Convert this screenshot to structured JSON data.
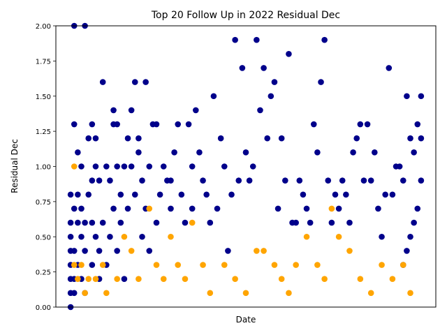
{
  "chart_data": {
    "type": "scatter",
    "title": "Top 20 Follow Up in 2022 Residual Dec",
    "xlabel": "Date",
    "ylabel": "Residual Dec",
    "ylim": [
      0,
      2
    ],
    "yticks": [
      0.0,
      0.25,
      0.5,
      0.75,
      1.0,
      1.25,
      1.5,
      1.75,
      2.0
    ],
    "ytick_labels": [
      "0.00",
      "0.25",
      "0.50",
      "0.75",
      "1.00",
      "1.25",
      "1.50",
      "1.75",
      "2.00"
    ],
    "x_tick_labels_visible": false,
    "grid": false,
    "legend": "none",
    "colors": {
      "primary": "#00008b",
      "highlight": "#ffa500"
    },
    "series": [
      {
        "color": "#00008b",
        "x": [
          0.01,
          0.01,
          0.01,
          0.01,
          0.01,
          0.01,
          0.01,
          0.01,
          0.02,
          0.02,
          0.02,
          0.02,
          0.02,
          0.02,
          0.03,
          0.03,
          0.03,
          0.03,
          0.04,
          0.04,
          0.04,
          0.04,
          0.05,
          0.05,
          0.05,
          0.05,
          0.06,
          0.06,
          0.07,
          0.07,
          0.07,
          0.07,
          0.08,
          0.08,
          0.08,
          0.09,
          0.09,
          0.09,
          0.1,
          0.1,
          0.11,
          0.11,
          0.12,
          0.12,
          0.13,
          0.13,
          0.13,
          0.14,
          0.14,
          0.14,
          0.15,
          0.15,
          0.16,
          0.16,
          0.17,
          0.17,
          0.18,
          0.18,
          0.19,
          0.19,
          0.2,
          0.2,
          0.21,
          0.21,
          0.22,
          0.22,
          0.23,
          0.23,
          0.24,
          0.25,
          0.25,
          0.26,
          0.27,
          0.28,
          0.29,
          0.29,
          0.3,
          0.31,
          0.32,
          0.33,
          0.34,
          0.35,
          0.35,
          0.36,
          0.37,
          0.38,
          0.39,
          0.4,
          0.41,
          0.42,
          0.43,
          0.44,
          0.45,
          0.46,
          0.47,
          0.48,
          0.49,
          0.5,
          0.51,
          0.52,
          0.53,
          0.54,
          0.55,
          0.56,
          0.57,
          0.58,
          0.59,
          0.6,
          0.61,
          0.62,
          0.63,
          0.64,
          0.65,
          0.66,
          0.67,
          0.68,
          0.69,
          0.7,
          0.71,
          0.72,
          0.73,
          0.74,
          0.75,
          0.76,
          0.77,
          0.78,
          0.79,
          0.8,
          0.81,
          0.82,
          0.83,
          0.84,
          0.85,
          0.86,
          0.87,
          0.88,
          0.89,
          0.9,
          0.91,
          0.92,
          0.93,
          0.94,
          0.95,
          0.96,
          0.97,
          0.98,
          0.99,
          0.99,
          0.99,
          0.98,
          0.97,
          0.96,
          0.95,
          0.94
        ],
        "y": [
          0.8,
          0.6,
          0.4,
          0.3,
          0.2,
          0.1,
          0.0,
          0.5,
          2.0,
          1.3,
          0.7,
          0.4,
          0.2,
          0.1,
          1.1,
          0.8,
          0.6,
          0.3,
          1.0,
          0.7,
          0.5,
          0.2,
          2.0,
          0.6,
          0.4,
          0.1,
          1.2,
          0.8,
          1.3,
          0.9,
          0.6,
          0.3,
          1.2,
          1.0,
          0.5,
          0.9,
          0.4,
          0.2,
          1.6,
          0.6,
          1.0,
          0.3,
          0.9,
          0.5,
          1.4,
          1.3,
          0.7,
          1.3,
          1.0,
          0.4,
          0.8,
          0.6,
          1.0,
          0.2,
          1.2,
          0.7,
          1.4,
          1.0,
          1.6,
          0.8,
          1.2,
          1.1,
          0.9,
          0.5,
          1.6,
          0.7,
          1.0,
          0.4,
          1.3,
          1.3,
          0.6,
          0.8,
          1.0,
          0.9,
          0.9,
          0.7,
          1.1,
          1.3,
          0.8,
          0.6,
          1.3,
          1.0,
          0.7,
          1.4,
          1.1,
          0.9,
          0.8,
          0.6,
          1.5,
          0.7,
          1.2,
          1.0,
          0.4,
          0.8,
          1.9,
          0.9,
          1.7,
          1.1,
          0.9,
          1.0,
          1.9,
          1.4,
          1.7,
          1.2,
          1.5,
          1.6,
          0.7,
          1.2,
          0.9,
          1.8,
          0.6,
          0.6,
          0.9,
          0.8,
          0.7,
          0.6,
          1.3,
          1.1,
          1.6,
          1.9,
          0.9,
          0.6,
          0.8,
          0.7,
          0.9,
          0.8,
          0.6,
          1.1,
          1.2,
          1.3,
          0.9,
          1.3,
          0.9,
          1.1,
          0.7,
          0.5,
          0.8,
          1.7,
          0.8,
          1.0,
          1.0,
          0.9,
          1.5,
          1.2,
          1.1,
          1.3,
          0.9,
          1.5,
          1.2,
          0.7,
          0.6,
          0.5,
          0.4,
          0.3
        ]
      },
      {
        "color": "#ffa500",
        "x": [
          0.02,
          0.02,
          0.03,
          0.04,
          0.05,
          0.06,
          0.08,
          0.1,
          0.11,
          0.14,
          0.16,
          0.18,
          0.2,
          0.23,
          0.25,
          0.27,
          0.29,
          0.31,
          0.33,
          0.35,
          0.38,
          0.4,
          0.44,
          0.47,
          0.5,
          0.53,
          0.55,
          0.58,
          0.6,
          0.62,
          0.64,
          0.67,
          0.7,
          0.72,
          0.74,
          0.76,
          0.79,
          0.82,
          0.85,
          0.88,
          0.91,
          0.94,
          0.96
        ],
        "y": [
          1.0,
          0.3,
          0.2,
          0.3,
          0.1,
          0.2,
          0.2,
          0.3,
          0.1,
          0.2,
          0.5,
          0.4,
          0.2,
          0.7,
          0.3,
          0.2,
          0.5,
          0.3,
          0.2,
          0.6,
          0.3,
          0.1,
          0.3,
          0.2,
          0.1,
          0.4,
          0.4,
          0.3,
          0.2,
          0.1,
          0.3,
          0.5,
          0.3,
          0.2,
          0.7,
          0.5,
          0.4,
          0.2,
          0.1,
          0.3,
          0.2,
          0.3,
          0.1
        ]
      }
    ]
  }
}
